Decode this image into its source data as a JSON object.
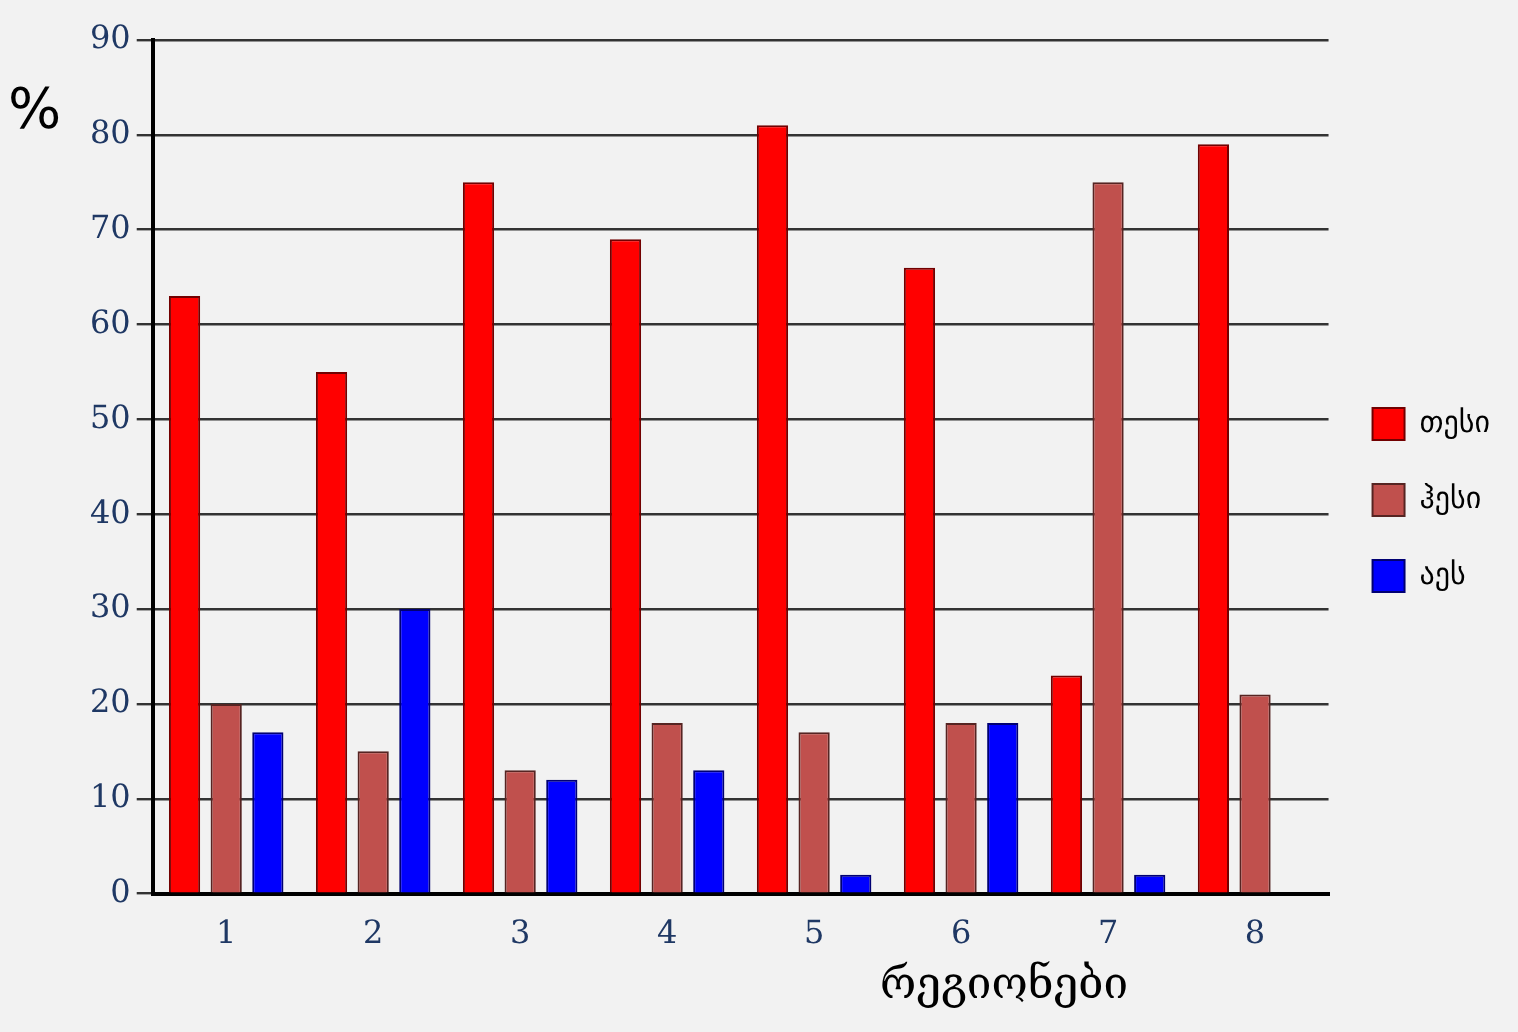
{
  "chart_data": {
    "type": "bar",
    "ylabel": "%",
    "xlabel": "რეგიონები",
    "categories": [
      "1",
      "2",
      "3",
      "4",
      "5",
      "6",
      "7",
      "8"
    ],
    "series": [
      {
        "name": "თესი",
        "color": "#ff0000",
        "values": [
          63,
          55,
          75,
          69,
          81,
          66,
          23,
          79
        ]
      },
      {
        "name": "ჰესი",
        "color": "#c0504d",
        "values": [
          20,
          15,
          13,
          18,
          17,
          18,
          75,
          21
        ]
      },
      {
        "name": "აეს",
        "color": "#0000ff",
        "values": [
          17,
          30,
          12,
          13,
          2,
          18,
          2,
          0
        ]
      }
    ],
    "ylim": [
      0,
      90
    ],
    "yticks": [
      0,
      10,
      20,
      30,
      40,
      50,
      60,
      70,
      80,
      90
    ],
    "grid": "y",
    "legend": "right"
  }
}
